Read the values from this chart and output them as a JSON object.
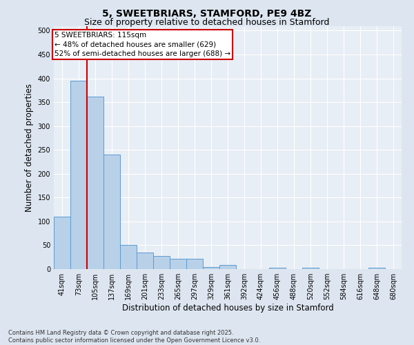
{
  "title": "5, SWEETBRIARS, STAMFORD, PE9 4BZ",
  "subtitle": "Size of property relative to detached houses in Stamford",
  "xlabel": "Distribution of detached houses by size in Stamford",
  "ylabel": "Number of detached properties",
  "footer_line1": "Contains HM Land Registry data © Crown copyright and database right 2025.",
  "footer_line2": "Contains public sector information licensed under the Open Government Licence v3.0.",
  "categories": [
    "41sqm",
    "73sqm",
    "105sqm",
    "137sqm",
    "169sqm",
    "201sqm",
    "233sqm",
    "265sqm",
    "297sqm",
    "329sqm",
    "361sqm",
    "392sqm",
    "424sqm",
    "456sqm",
    "488sqm",
    "520sqm",
    "552sqm",
    "584sqm",
    "616sqm",
    "648sqm",
    "680sqm"
  ],
  "values": [
    110,
    395,
    362,
    240,
    50,
    35,
    28,
    22,
    21,
    5,
    8,
    0,
    0,
    3,
    0,
    3,
    0,
    0,
    0,
    3,
    0
  ],
  "bar_color": "#b8d0e8",
  "bar_edge_color": "#5b9bd5",
  "vline_color": "#cc0000",
  "vline_pos": 1.5,
  "annotation_title": "5 SWEETBRIARS: 115sqm",
  "annotation_line1": "← 48% of detached houses are smaller (629)",
  "annotation_line2": "52% of semi-detached houses are larger (688) →",
  "annotation_box_color": "#cc0000",
  "ylim": [
    0,
    510
  ],
  "yticks": [
    0,
    50,
    100,
    150,
    200,
    250,
    300,
    350,
    400,
    450,
    500
  ],
  "bg_color": "#dde6f0",
  "plot_bg_color": "#e8eef5",
  "grid_color": "#ffffff",
  "title_fontsize": 10,
  "subtitle_fontsize": 9,
  "tick_fontsize": 7,
  "label_fontsize": 8.5,
  "footer_fontsize": 6,
  "annotation_fontsize": 7.5
}
